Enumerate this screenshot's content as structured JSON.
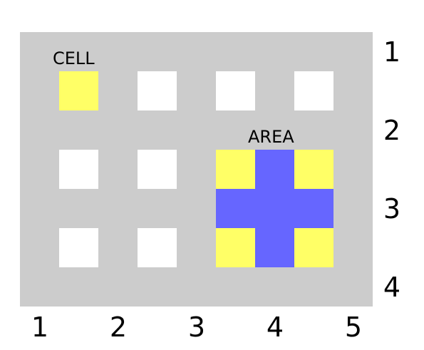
{
  "labels": {
    "cell": "CELL",
    "area": "AREA"
  },
  "axis": {
    "bottom": [
      "1",
      "2",
      "3",
      "4",
      "5"
    ],
    "right": [
      "1",
      "2",
      "3",
      "4"
    ]
  },
  "colors": {
    "panel": "#cccccc",
    "empty_cell": "#ffffff",
    "highlight_cell": "#ffff66",
    "area_fill": "#6666ff"
  },
  "cells": [
    {
      "row": 1,
      "col": 1,
      "state": "highlight"
    },
    {
      "row": 1,
      "col": 2,
      "state": "empty"
    },
    {
      "row": 1,
      "col": 3,
      "state": "empty"
    },
    {
      "row": 1,
      "col": 4,
      "state": "empty"
    },
    {
      "row": 2,
      "col": 1,
      "state": "empty"
    },
    {
      "row": 2,
      "col": 2,
      "state": "empty"
    },
    {
      "row": 2,
      "col": 3,
      "state": "highlight"
    },
    {
      "row": 2,
      "col": 4,
      "state": "highlight"
    },
    {
      "row": 3,
      "col": 1,
      "state": "empty"
    },
    {
      "row": 3,
      "col": 2,
      "state": "empty"
    },
    {
      "row": 3,
      "col": 3,
      "state": "highlight"
    },
    {
      "row": 3,
      "col": 4,
      "state": "highlight"
    }
  ],
  "area": {
    "col_start": 3,
    "col_end": 4,
    "row_start": 2,
    "row_end": 3
  }
}
